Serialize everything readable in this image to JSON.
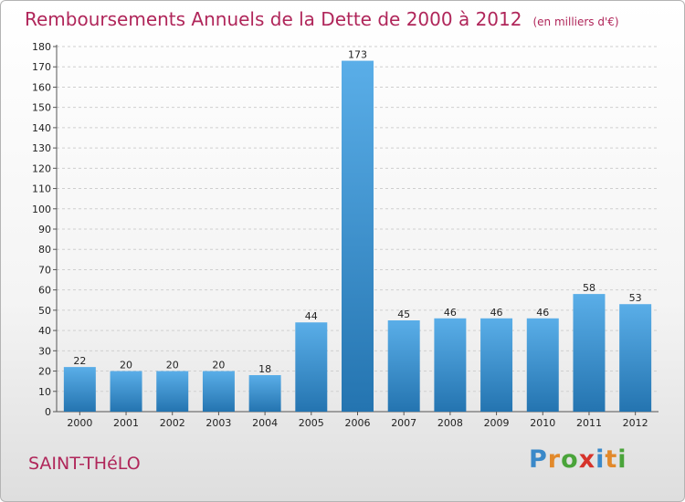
{
  "title": "Remboursements Annuels de la Dette de 2000 à 2012",
  "title_unit": "(en milliers d'€)",
  "commune": "SAINT-THéLO",
  "logo": {
    "letters": [
      "P",
      "r",
      "o",
      "x",
      "i",
      "t",
      "i"
    ],
    "colors": [
      "#3a89c9",
      "#e2892b",
      "#4aa43a",
      "#d6332b",
      "#3a89c9",
      "#e2892b",
      "#4aa43a"
    ]
  },
  "colors": {
    "title": "#b0265a",
    "bar_light": "#5aaee8",
    "bar_dark": "#2474b0"
  },
  "chart_data": {
    "type": "bar",
    "title": "Remboursements Annuels de la Dette de 2000 à 2012",
    "categories": [
      "2000",
      "2001",
      "2002",
      "2003",
      "2004",
      "2005",
      "2006",
      "2007",
      "2008",
      "2009",
      "2010",
      "2011",
      "2012"
    ],
    "values": [
      22,
      20,
      20,
      20,
      18,
      44,
      173,
      45,
      46,
      46,
      46,
      58,
      53
    ],
    "ylim": [
      0,
      180
    ],
    "yticks": [
      0,
      10,
      20,
      30,
      40,
      50,
      60,
      70,
      80,
      90,
      100,
      110,
      120,
      130,
      140,
      150,
      160,
      170,
      180
    ],
    "grid": true,
    "xlabel": "",
    "ylabel": ""
  }
}
